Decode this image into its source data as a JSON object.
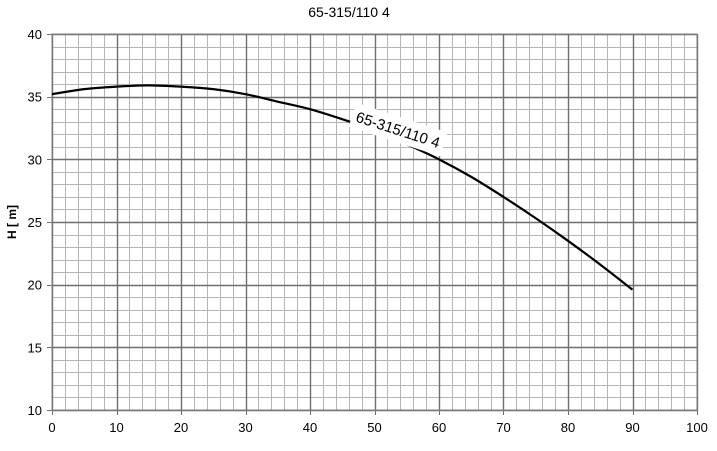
{
  "chart_data": {
    "type": "line",
    "title": "65-315/110 4",
    "xlabel": "",
    "ylabel": "H [ m]",
    "xlim": [
      0,
      100
    ],
    "ylim": [
      10,
      40
    ],
    "x_major_ticks": [
      "0",
      "10",
      "20",
      "30",
      "40",
      "50",
      "60",
      "70",
      "80",
      "90",
      "100"
    ],
    "y_major_ticks": [
      "10",
      "15",
      "20",
      "25",
      "30",
      "35",
      "40"
    ],
    "grid": true,
    "minor_grid_x_step": 2,
    "minor_grid_y_step": 1,
    "series": [
      {
        "name": "65-315/110 4",
        "color": "#000000",
        "x": [
          0,
          5,
          10,
          15,
          20,
          25,
          30,
          35,
          40,
          45,
          50,
          55,
          60,
          65,
          70,
          75,
          80,
          85,
          90
        ],
        "y": [
          35.2,
          35.6,
          35.8,
          35.9,
          35.8,
          35.6,
          35.2,
          34.6,
          34.0,
          33.2,
          32.3,
          31.2,
          30.0,
          28.6,
          27.0,
          25.3,
          23.5,
          21.6,
          19.6
        ]
      }
    ]
  }
}
